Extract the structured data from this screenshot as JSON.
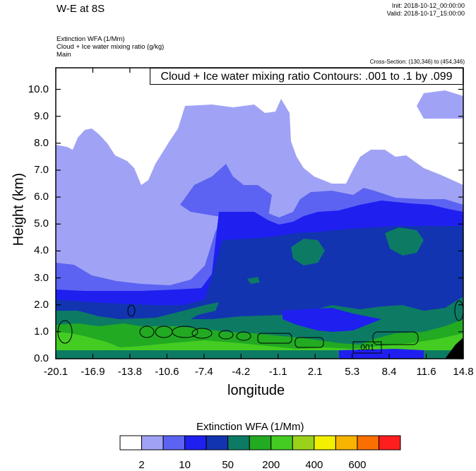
{
  "header": {
    "title": "W-E at 8S",
    "init": "Init: 2018-10-12_00:00:00",
    "valid": "Valid: 2018-10-17_15:00:00",
    "field1": "Extinction WFA   (1/Mm)",
    "field2": "Cloud + Ice water mixing ratio   (g/kg)",
    "field3": "Main",
    "cross_section": "Cross-Section: (130,346) to (454,346)",
    "contours": "Cloud + Ice water mixing ratio Contours: .001 to .1 by .099"
  },
  "chart_data": {
    "type": "heatmap",
    "title": "W-E at 8S",
    "xlabel": "longitude",
    "ylabel": "Height (km)",
    "xlim": [
      -20.1,
      14.8
    ],
    "ylim": [
      0,
      10.8
    ],
    "x_ticks": [
      "-20.1",
      "-16.9",
      "-13.8",
      "-10.6",
      "-7.4",
      "-4.2",
      "-1.1",
      "2.1",
      "5.3",
      "8.4",
      "11.6",
      "14.8"
    ],
    "y_ticks": [
      "0.0",
      "1.0",
      "2.0",
      "3.0",
      "4.0",
      "5.0",
      "6.0",
      "7.0",
      "8.0",
      "9.0",
      "10.0"
    ],
    "contour_label": ".001",
    "colorbar": {
      "title": "Extinction WFA  (1/Mm)",
      "colors": [
        "#ffffff",
        "#a0a3f5",
        "#5c63f2",
        "#1f1ff0",
        "#1234b0",
        "#0d7b64",
        "#22aa22",
        "#44cc22",
        "#9ad21a",
        "#f2ef00",
        "#f8b400",
        "#fa6f00",
        "#ff1e1e"
      ],
      "labels": [
        "2",
        "10",
        "50",
        "200",
        "400",
        "600"
      ]
    }
  }
}
